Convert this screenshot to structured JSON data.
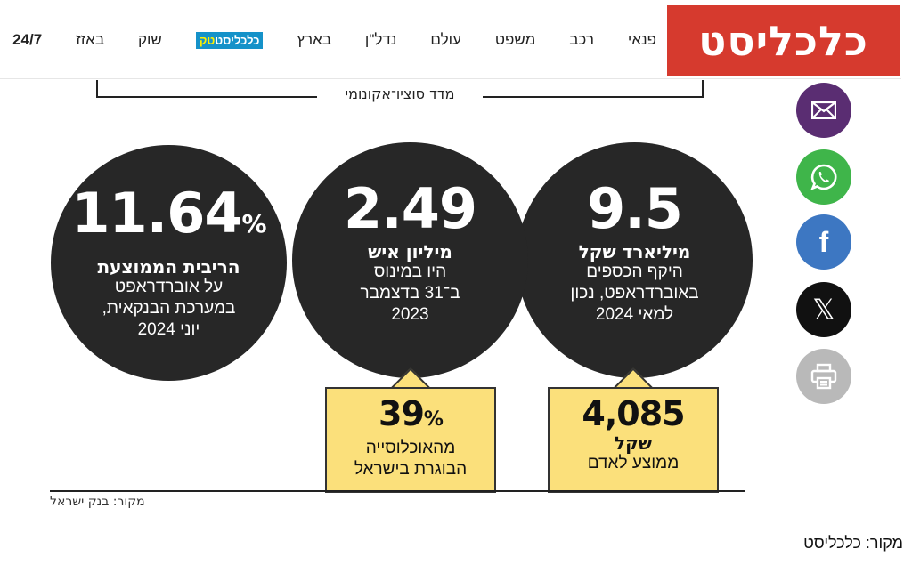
{
  "header": {
    "logo": "כלכליסט",
    "nav": [
      {
        "label": "24/7"
      },
      {
        "label": "באזז"
      },
      {
        "label": "שוק"
      },
      {
        "label_main": "כלכליסט",
        "label_accent": "טק"
      },
      {
        "label": "בארץ"
      },
      {
        "label": "נדל\"ן"
      },
      {
        "label": "עולם"
      },
      {
        "label": "משפט"
      },
      {
        "label": "רכב"
      },
      {
        "label": "פנאי"
      }
    ]
  },
  "infographic": {
    "bracket_label": "מדד סוציו־אקונומי",
    "circles": [
      {
        "value": "9.5",
        "bold": "מיליארד שקל",
        "lines": [
          "היקף הכספים",
          "באוברדראפט, נכון",
          "למאי 2024"
        ]
      },
      {
        "value": "2.49",
        "bold": "מיליון איש",
        "lines": [
          "היו במינוס",
          "ב־31 בדצמבר",
          "2023"
        ]
      },
      {
        "value": "11.64",
        "unit": "%",
        "bold": "הריבית הממוצעת",
        "lines": [
          "על אוברדראפט",
          "במערכת הבנקאית,",
          "יוני 2024"
        ]
      }
    ],
    "boxes": [
      {
        "value": "4,085",
        "bold": "שקל",
        "lines": [
          "ממוצע לאדם"
        ]
      },
      {
        "value": "39",
        "unit": "%",
        "lines": [
          "מהאוכלוסייה",
          "הבוגרת בישראל"
        ]
      }
    ],
    "source_inner": "מקור: בנק ישראל"
  },
  "share": {
    "icons": [
      "mail-icon",
      "whatsapp-icon",
      "facebook-icon",
      "x-icon",
      "print-icon"
    ],
    "facebook_glyph": "f",
    "x_glyph": "𝕏"
  },
  "caption": "מקור: כלכליסט"
}
